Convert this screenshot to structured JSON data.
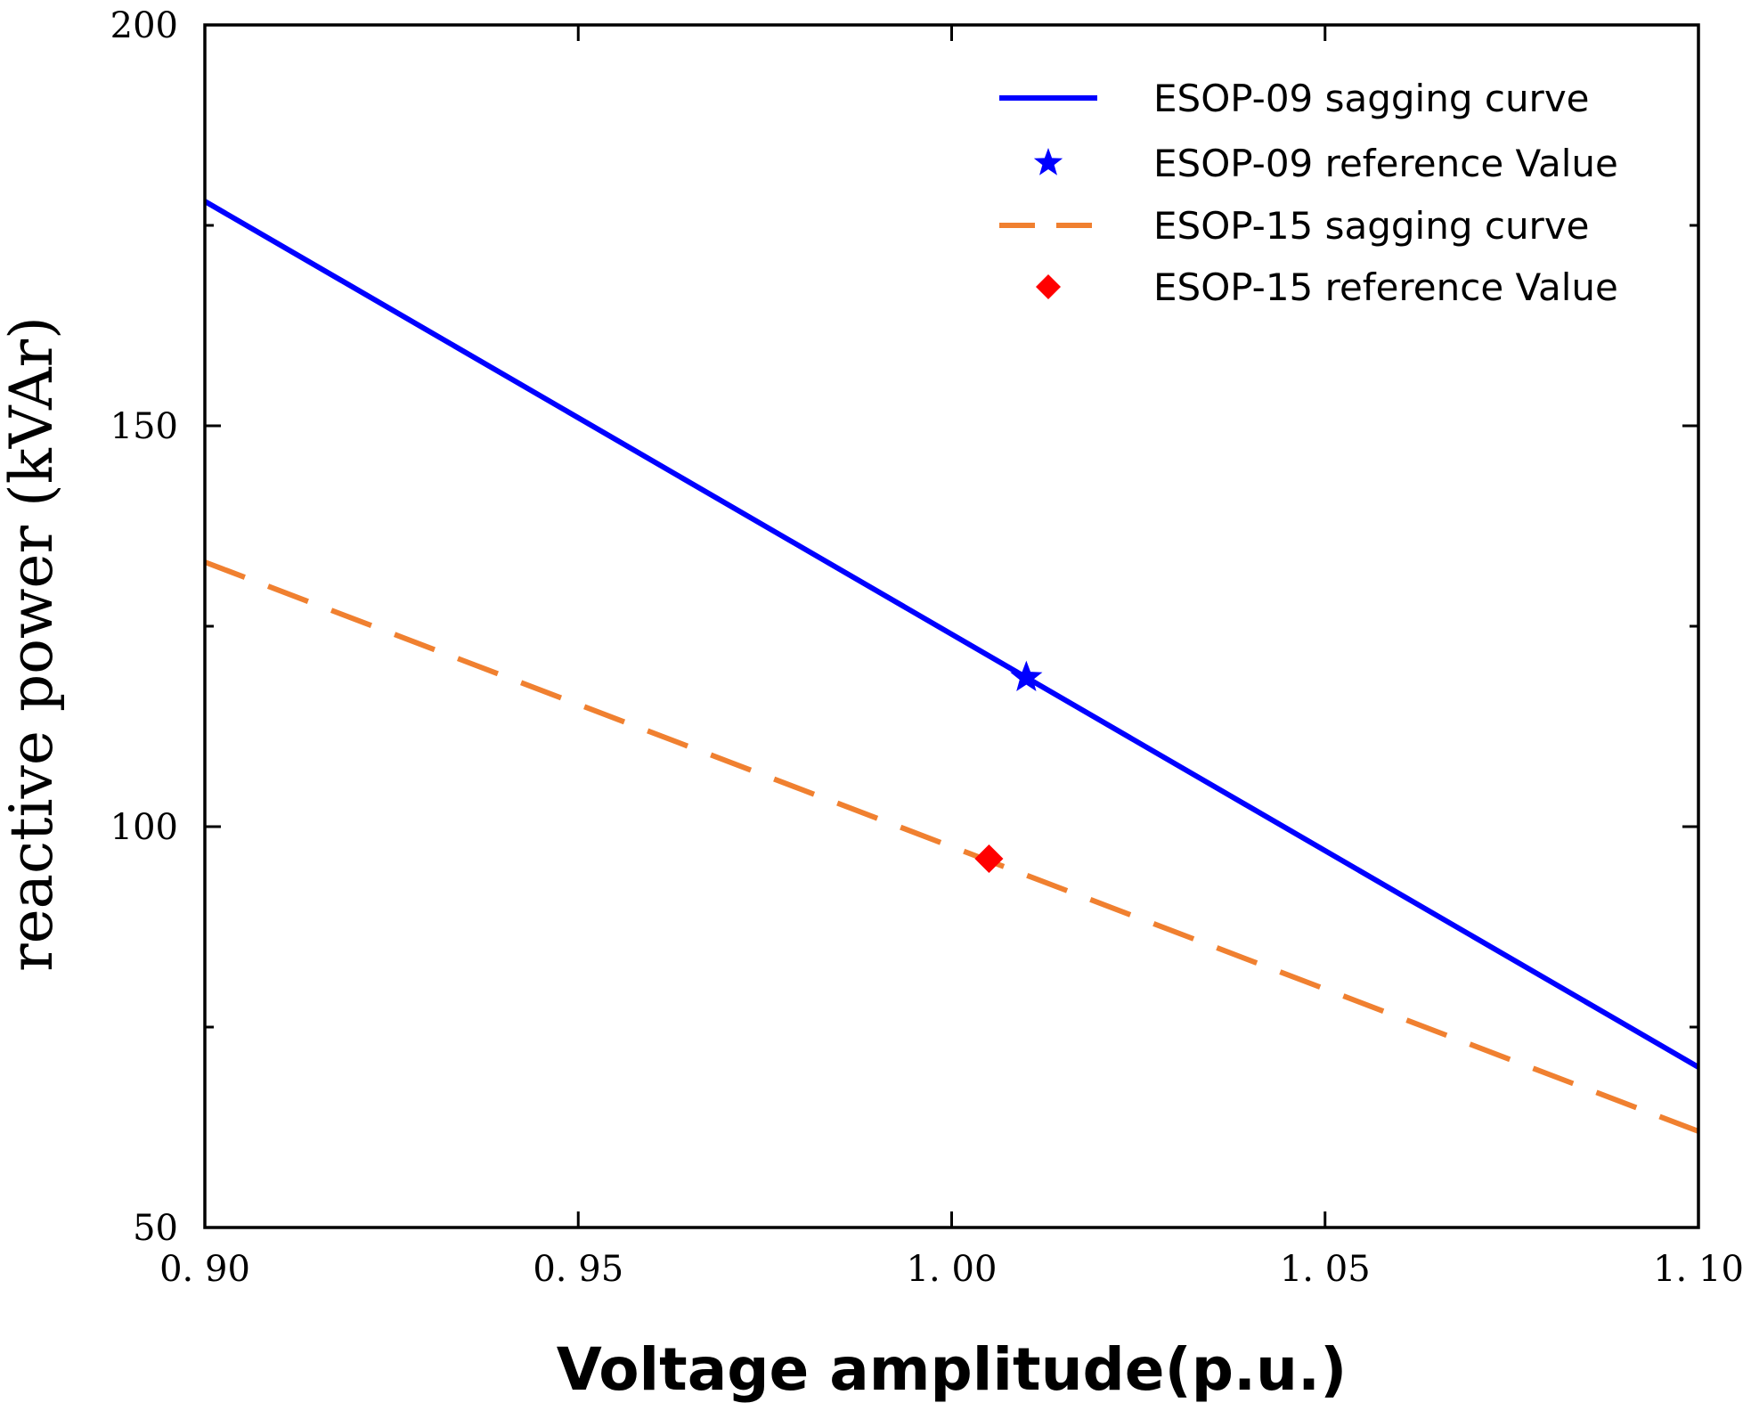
{
  "chart_data": {
    "type": "line",
    "xlabel": "Voltage amplitude(p.u.)",
    "ylabel": "reactive power (kVAr)",
    "xlim": [
      0.9,
      1.1
    ],
    "ylim": [
      50,
      200
    ],
    "x_ticks": [
      0.9,
      0.95,
      1.0,
      1.05,
      1.1
    ],
    "x_tick_labels": [
      "0. 90",
      "0. 95",
      "1. 00",
      "1. 05",
      "1. 10"
    ],
    "y_ticks": [
      50,
      100,
      150,
      200
    ],
    "y_tick_labels": [
      "50",
      "100",
      "150",
      "200"
    ],
    "y_minor_ticks": [
      75,
      125,
      175
    ],
    "grid": false,
    "legend_position": "top-right",
    "series": [
      {
        "name": "ESOP-09 sagging curve",
        "kind": "line",
        "style": "solid",
        "color": "#0000ff",
        "x": [
          0.9,
          1.1
        ],
        "y": [
          178,
          70
        ]
      },
      {
        "name": "ESOP-09 reference Value",
        "kind": "marker",
        "marker": "star",
        "color": "#0000ff",
        "x": [
          1.01
        ],
        "y": [
          118.6
        ]
      },
      {
        "name": "ESOP-15 sagging curve",
        "kind": "line",
        "style": "dashed",
        "color": "#f08030",
        "x": [
          0.9,
          1.1
        ],
        "y": [
          133,
          62
        ]
      },
      {
        "name": "ESOP-15 reference Value",
        "kind": "marker",
        "marker": "diamond",
        "color": "#ff0000",
        "x": [
          1.005
        ],
        "y": [
          96
        ]
      }
    ]
  }
}
